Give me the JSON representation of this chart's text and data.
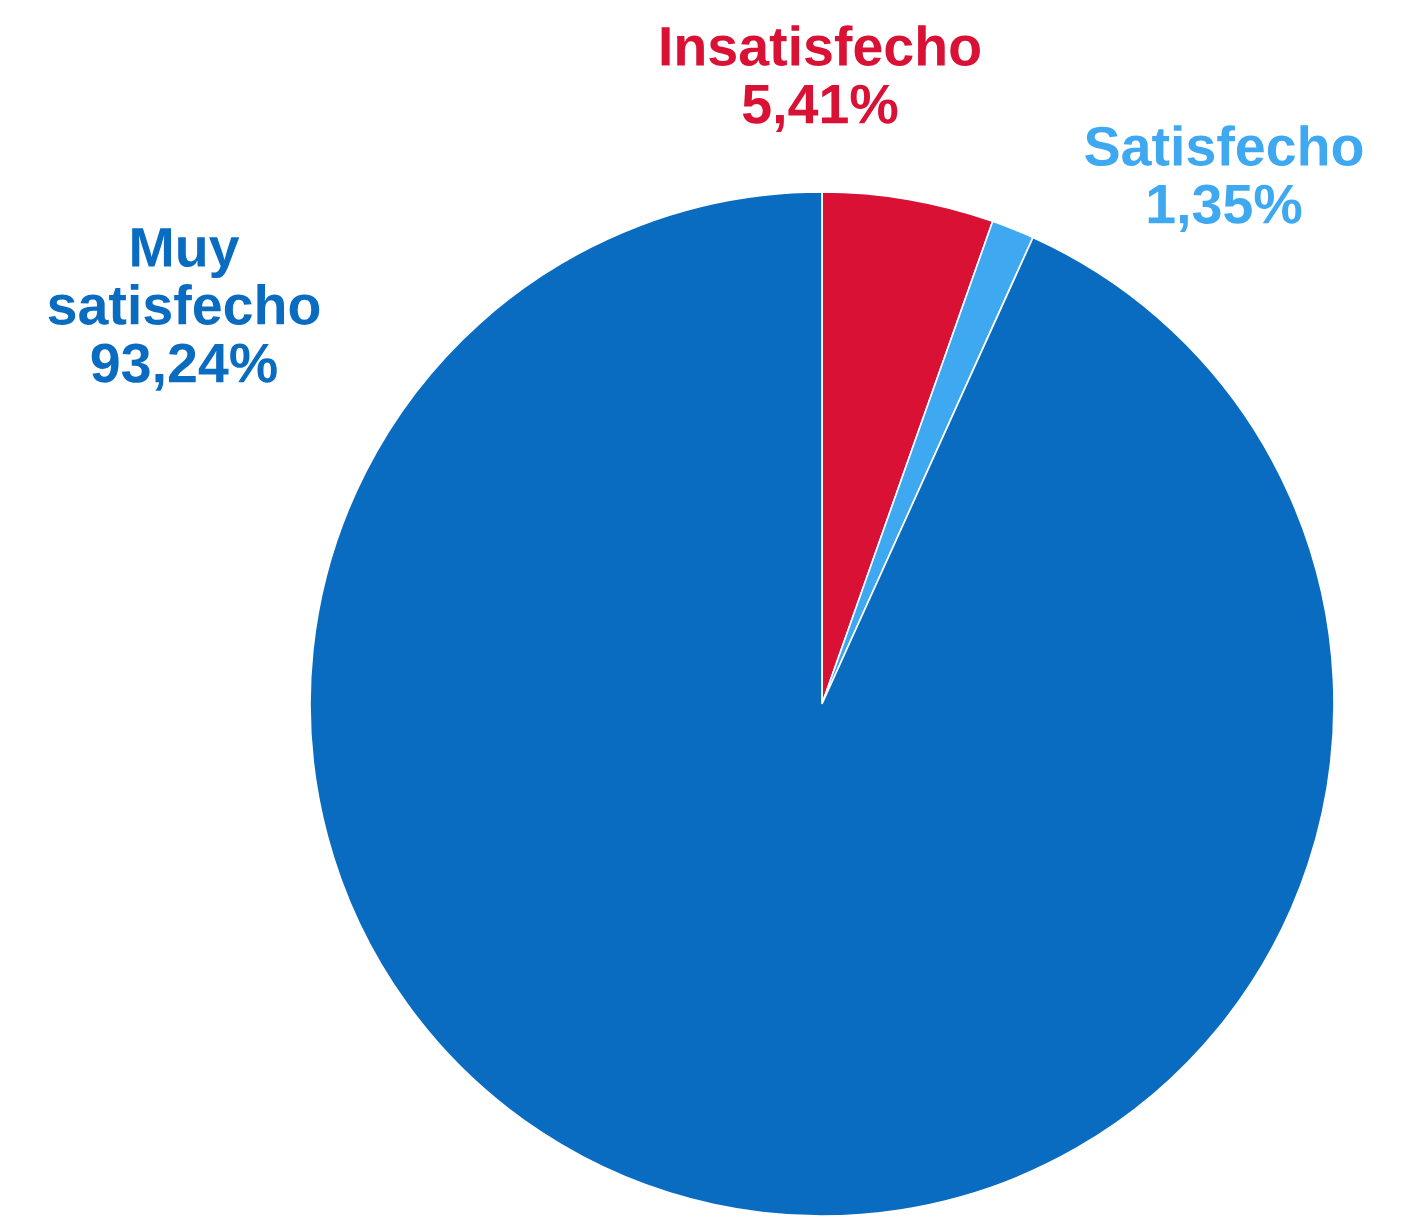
{
  "chart_data": {
    "type": "pie",
    "categories": [
      "Insatisfecho",
      "Satisfecho",
      "Muy satisfecho"
    ],
    "values": [
      5.41,
      1.35,
      93.24
    ],
    "value_labels": [
      "5,41%",
      "1,35%",
      "93,24%"
    ],
    "colors": [
      "#d81135",
      "#3ea8f0",
      "#0a6cc0"
    ]
  }
}
